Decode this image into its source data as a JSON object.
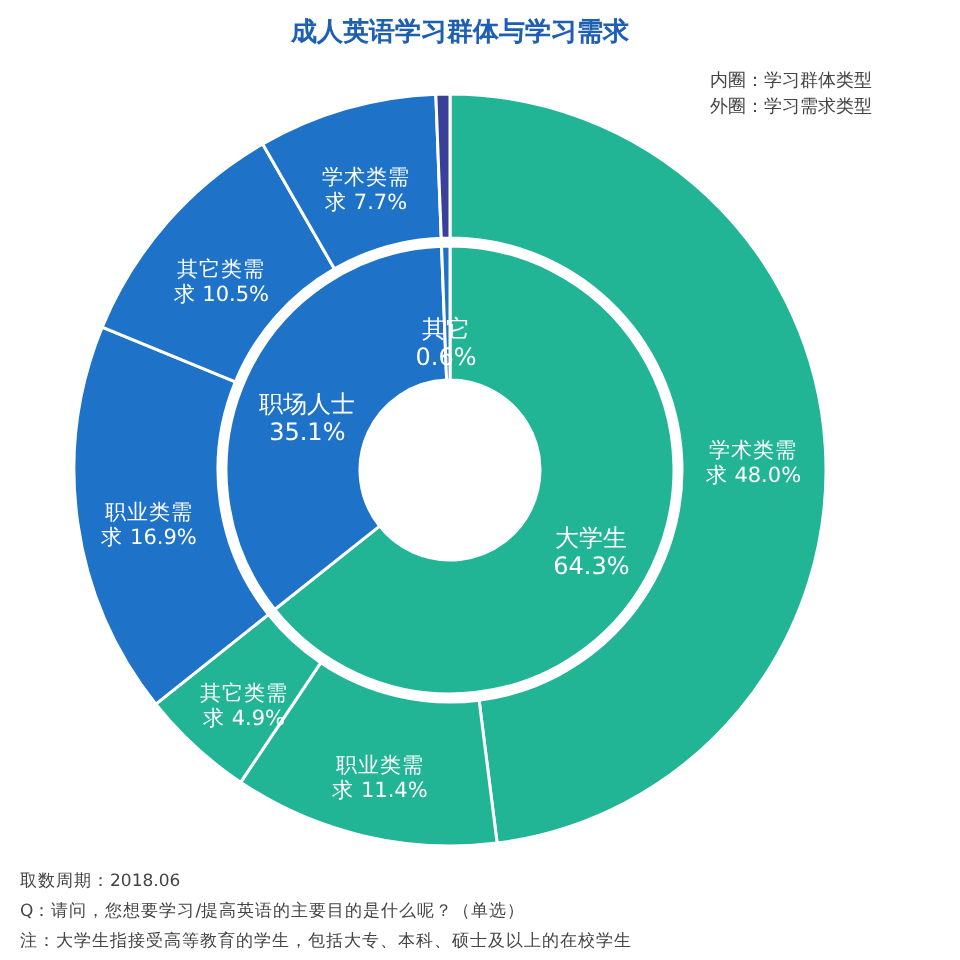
{
  "chart_data": [
    {
      "type": "donut",
      "title": "成人英语学习群体与学习需求",
      "categories": [
        "大学生",
        "职场人士",
        "其它"
      ],
      "values": [
        64.3,
        35.1,
        0.6
      ],
      "value_labels": [
        "64.3%",
        "35.1%",
        "0.6%"
      ],
      "colors": [
        "#21b495",
        "#1e72c8",
        "#1e72c8"
      ],
      "annotations": [
        "内圈：学习群体类型",
        "外圈：学习需求类型",
        "取数周期：2018.06",
        "Q：请问，您想要学习/提高英语的主要目的是什么呢？（单选）",
        "注：大学生指接受高等教育的学生，包括大专、本科、硕士及以上的在校学生"
      ]
    },
    {
      "type": "donut",
      "categories": [
        "学术类需求",
        "职业类需求",
        "其它类需求",
        "职业类需求",
        "其它类需求",
        "学术类需求",
        null
      ],
      "values": [
        48.0,
        11.4,
        4.9,
        16.9,
        10.5,
        7.7,
        0.6
      ],
      "value_labels": [
        "48.0%",
        "11.4%",
        "4.9%",
        "16.9%",
        "10.5%",
        "7.7%",
        null
      ],
      "colors": [
        "#21b495",
        "#21b495",
        "#21b495",
        "#1e72c8",
        "#1e72c8",
        "#1e72c8",
        "#3a3f99"
      ]
    }
  ]
}
